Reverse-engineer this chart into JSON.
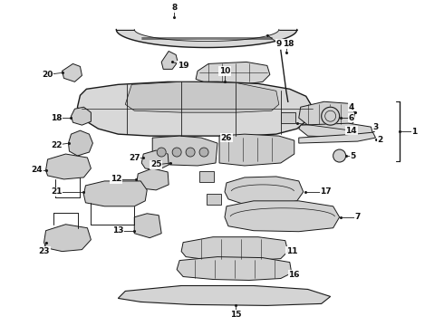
{
  "bg_color": "#ffffff",
  "line_color": "#1a1a1a",
  "fill_color": "#e8e8e8",
  "fill_dark": "#cccccc",
  "fig_width": 4.9,
  "fig_height": 3.6,
  "dpi": 100,
  "font_size": 6.5,
  "font_weight": "bold",
  "text_color": "#111111",
  "xmin": 0,
  "xmax": 490,
  "ymin": 0,
  "ymax": 360
}
